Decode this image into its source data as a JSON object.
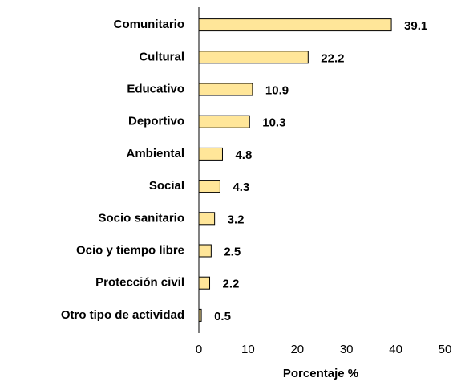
{
  "chart_data": {
    "type": "bar",
    "orientation": "horizontal",
    "x_label": "Porcentaje %",
    "categories": [
      "Comunitario",
      "Cultural",
      "Educativo",
      "Deportivo",
      "Ambiental",
      "Social",
      "Socio sanitario",
      "Ocio y tiempo libre",
      "Protección civil",
      "Otro tipo de actividad"
    ],
    "values": [
      39.1,
      22.2,
      10.9,
      10.3,
      4.8,
      4.3,
      3.2,
      2.5,
      2.2,
      0.5
    ],
    "color": "#ffe699",
    "xlim": [
      0,
      50
    ],
    "xticks": [
      0,
      10,
      20,
      30,
      40,
      50
    ],
    "grid": false
  }
}
